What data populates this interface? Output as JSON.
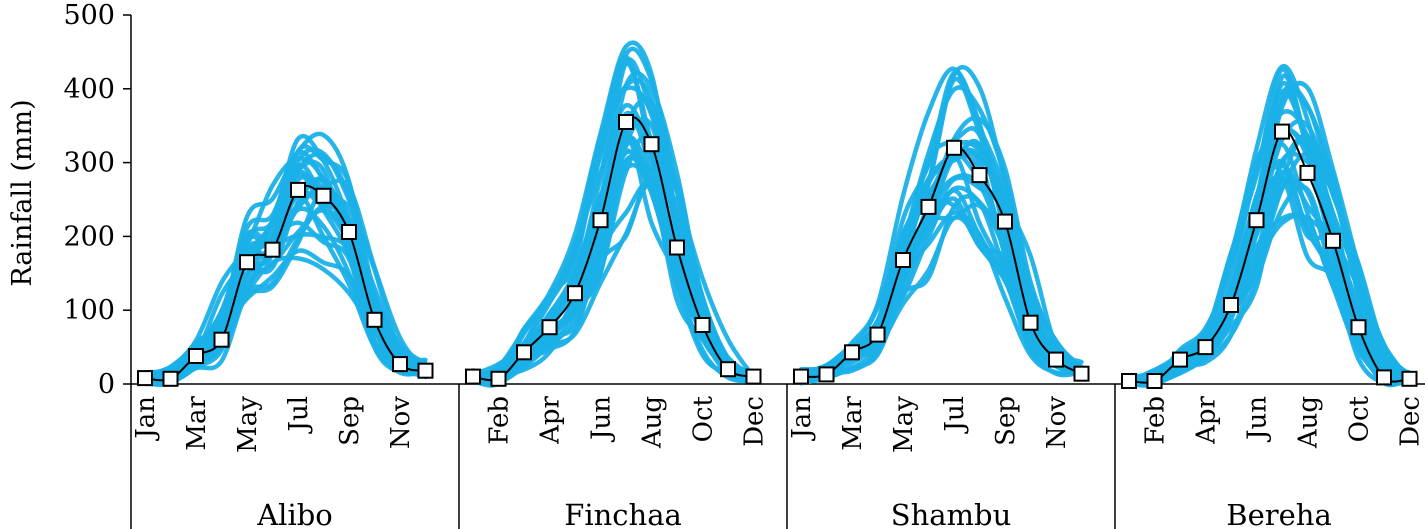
{
  "chart_data": {
    "type": "line",
    "title": "",
    "ylabel": "Rainfall (mm)",
    "ylim": [
      0,
      500
    ],
    "yticks": [
      "0",
      "100",
      "200",
      "300",
      "400",
      "500"
    ],
    "individual_series_color": "#1AB0E8",
    "mean_series_color": "#000000",
    "panels": [
      {
        "site": "Alibo",
        "month_labels": [
          "Jan",
          "Mar",
          "May",
          "Jul",
          "Sep",
          "Nov"
        ],
        "mean": [
          8,
          7,
          38,
          60,
          165,
          182,
          263,
          255,
          206,
          87,
          27,
          18
        ]
      },
      {
        "site": "Finchaa",
        "month_labels": [
          "Feb",
          "Apr",
          "Jun",
          "Aug",
          "Oct",
          "Dec"
        ],
        "mean": [
          10,
          7,
          43,
          77,
          123,
          222,
          355,
          325,
          185,
          80,
          20,
          10
        ]
      },
      {
        "site": "Shambu",
        "month_labels": [
          "Jan",
          "Mar",
          "May",
          "Jul",
          "Sep",
          "Nov"
        ],
        "mean": [
          10,
          13,
          43,
          67,
          168,
          240,
          320,
          283,
          220,
          83,
          33,
          14
        ]
      },
      {
        "site": "Bereha",
        "month_labels": [
          "Feb",
          "Apr",
          "Jun",
          "Aug",
          "Oct",
          "Dec"
        ],
        "mean": [
          4,
          4,
          33,
          50,
          107,
          222,
          342,
          286,
          194,
          77,
          9,
          7
        ]
      }
    ]
  }
}
